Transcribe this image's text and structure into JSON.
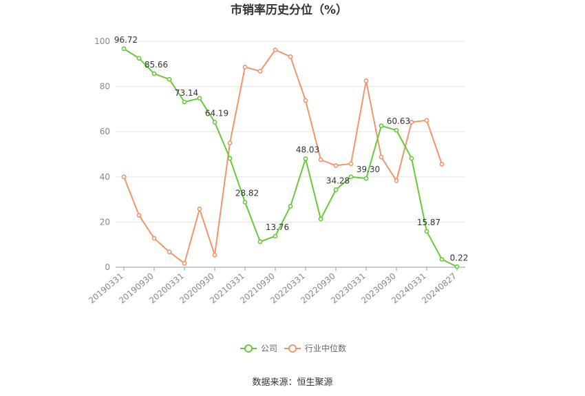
{
  "chart_data": {
    "type": "line",
    "title": "市销率历史分位（%）",
    "xlabel": "",
    "ylabel": "",
    "ylim": [
      0,
      100
    ],
    "yticks": [
      0,
      20,
      40,
      60,
      80,
      100
    ],
    "grid": true,
    "legend_position": "bottom",
    "x_tick_labels": [
      "20190331",
      "20190930",
      "20200331",
      "20200930",
      "20210331",
      "20210930",
      "20220331",
      "20220930",
      "20230331",
      "20230930",
      "20240331",
      "20240827"
    ],
    "x": [
      "20190331",
      "20190630",
      "20190930",
      "20191231",
      "20200331",
      "20200630",
      "20200930",
      "20201231",
      "20210331",
      "20210630",
      "20210930",
      "20211231",
      "20220331",
      "20220630",
      "20220930",
      "20221231",
      "20230331",
      "20230630",
      "20230930",
      "20231231",
      "20240331",
      "20240630",
      "20240827"
    ],
    "series": [
      {
        "name": "公司",
        "color": "#66c93a",
        "values": [
          96.72,
          92.5,
          85.66,
          83.2,
          73.14,
          74.8,
          64.19,
          48.2,
          28.82,
          11.3,
          13.76,
          27.0,
          48.03,
          21.3,
          34.28,
          40.0,
          39.3,
          62.6,
          60.63,
          48.2,
          15.87,
          3.5,
          0.22
        ],
        "labels": {
          "0": "96.72",
          "2": "85.66",
          "4": "73.14",
          "6": "64.19",
          "8": "28.82",
          "10": "13.76",
          "12": "48.03",
          "14": "34.28",
          "16": "39.30",
          "18": "60.63",
          "20": "15.87",
          "22": "0.22"
        }
      },
      {
        "name": "行业中位数",
        "color": "#f0956a",
        "values": [
          40.0,
          23.0,
          12.8,
          6.8,
          1.7,
          25.8,
          5.4,
          55.0,
          88.6,
          86.8,
          96.2,
          93.2,
          73.8,
          47.6,
          45.0,
          45.8,
          82.5,
          48.8,
          38.3,
          64.2,
          65.0,
          45.6,
          null
        ]
      }
    ]
  },
  "source": "数据来源：恒生聚源"
}
